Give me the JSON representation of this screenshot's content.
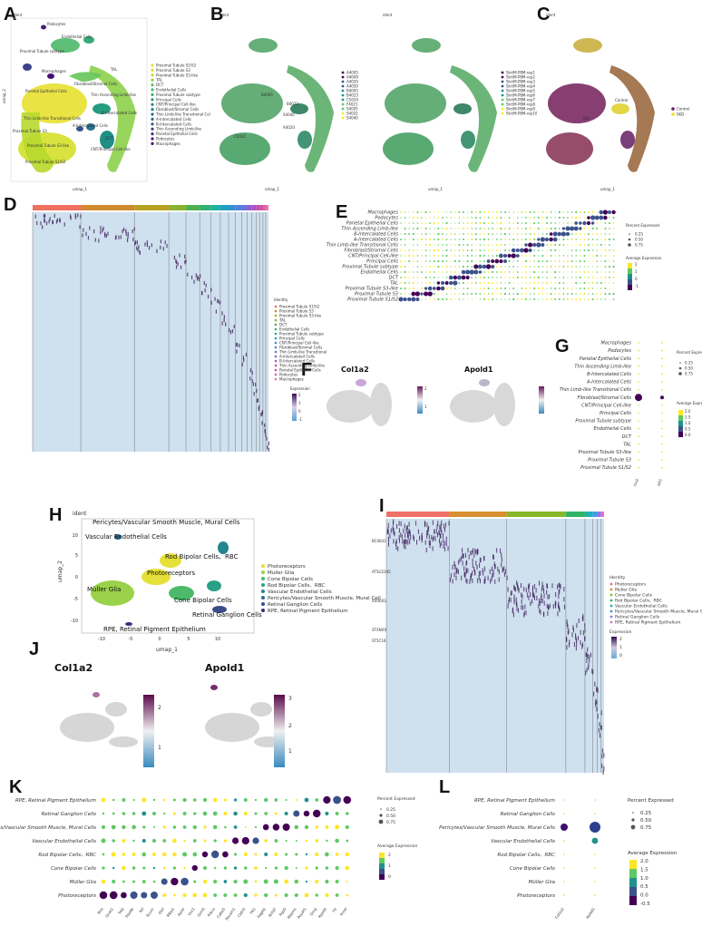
{
  "panels": {
    "a": "A",
    "b": "B",
    "c": "C",
    "d": "D",
    "e": "E",
    "f": "F",
    "g": "G",
    "h": "H",
    "i": "I",
    "j": "J",
    "k": "K",
    "l": "L"
  },
  "kidney": {
    "ident_label": "ident",
    "umap1": "umap_1",
    "umap2": "umap_2",
    "clusters": [
      {
        "name": "Proximal Tubule S1/S2",
        "color": "#e8e23a"
      },
      {
        "name": "Proximal Tubule S3",
        "color": "#d4e02a"
      },
      {
        "name": "Proximal Tubule S3-like",
        "color": "#b8d82e"
      },
      {
        "name": "TAL",
        "color": "#8cd04a"
      },
      {
        "name": "DCT",
        "color": "#66c55a"
      },
      {
        "name": "Endothelial Cells",
        "color": "#4cb86a"
      },
      {
        "name": "Proximal Tubule subtype",
        "color": "#36ab78"
      },
      {
        "name": "Principal Cells",
        "color": "#259d80"
      },
      {
        "name": "CNT/Principal Cell-like",
        "color": "#1f8e86"
      },
      {
        "name": "Fibroblast/Stromal Cells",
        "color": "#25808a"
      },
      {
        "name": "Thin Limb-like Transitional Cells",
        "color": "#2b718c"
      },
      {
        "name": "A-Intercalated Cells",
        "color": "#31628c"
      },
      {
        "name": "B-Intercalated Cells",
        "color": "#37538b"
      },
      {
        "name": "Thin Ascending Limb-like",
        "color": "#3d4388"
      },
      {
        "name": "Parietal Epithelial Cells",
        "color": "#433282"
      },
      {
        "name": "Podocytes",
        "color": "#46207a"
      },
      {
        "name": "Macrophages",
        "color": "#440d6e"
      }
    ],
    "umap_labels": [
      {
        "text": "Podocytes"
      },
      {
        "text": "Endothelial Cells"
      },
      {
        "text": "Proximal Tubule subtype"
      },
      {
        "text": "Macrophages"
      },
      {
        "text": "TAL"
      },
      {
        "text": "Fibroblast/Stromal Cells"
      },
      {
        "text": "Parietal Epithelial Cells"
      },
      {
        "text": "Thin Ascending Limb-like"
      },
      {
        "text": "B-Intercalated Cells"
      },
      {
        "text": "Thin Limb-like Transitional Cells"
      },
      {
        "text": "A-Intercalated Cells"
      },
      {
        "text": "Proximal Tubule S3"
      },
      {
        "text": "Proximal Tubule S3-like"
      },
      {
        "text": "DCT"
      },
      {
        "text": "CNT/Principal Cell-like"
      },
      {
        "text": "Proximal Tubule S1/S2"
      }
    ],
    "b_labels": [
      "B4005",
      "B4023",
      "C5024",
      "A4020",
      "S4040"
    ],
    "b_legend": [
      "A4005",
      "A4009",
      "A4020",
      "A4050",
      "B4005",
      "B4023",
      "C5024",
      "F4021",
      "S4005",
      "S4022",
      "S4040"
    ],
    "b_legend2": [
      "SkrtM-P8M-rep1",
      "SkrtM-P8M-rep2",
      "SkrtM-P8M-rep3",
      "SkrtM-P8M-rep4",
      "SkrtM-P8M-rep5",
      "SkrtM-P8M-rep6",
      "SkrtM-P8M-rep7",
      "SkrtM-P8M-rep8",
      "SkrtM-P8M-rep9",
      "SkrtM-P8M-rep10"
    ],
    "c_labels": [
      "SKD",
      "Control"
    ],
    "c_legend": [
      {
        "name": "Control",
        "color": "#6a1a6e"
      },
      {
        "name": "SKD",
        "color": "#f0e020"
      }
    ]
  },
  "heatmap_d": {
    "legend_title": "Identity",
    "legend": [
      "Proximal Tubule S1/S2",
      "Proximal Tubule S3",
      "Proximal Tubule S3-like",
      "TAL",
      "DCT",
      "Endothelial Cells",
      "Proximal Tubule subtype",
      "Principal Cells",
      "CNT/Principal Cell-like",
      "Fibroblast/Stromal Cells",
      "Thin Limb-like Transitional Cells",
      "A-Intercalated Cells",
      "B-Intercalated Cells",
      "Thin Ascending Limb-like",
      "Parietal Epithelial Cells",
      "Podocytes",
      "Macrophages"
    ],
    "expr_title": "Expression",
    "expr_ticks": [
      "2",
      "1",
      "0",
      "-1"
    ],
    "bar_colors": [
      "#f07060",
      "#d08a30",
      "#b9a020",
      "#8cb030",
      "#50b050",
      "#30b070",
      "#20b0a0",
      "#20a0c0",
      "#3090d0",
      "#5080e0",
      "#7070e0",
      "#9060d0",
      "#b050c0",
      "#c050b0",
      "#d050a0",
      "#e060a0",
      "#f070b0"
    ],
    "bar_widths": [
      70,
      78,
      50,
      25,
      20,
      16,
      14,
      12,
      10,
      9,
      8,
      7,
      6,
      5,
      5,
      4,
      4
    ]
  },
  "dot_e": {
    "rows": [
      "Macrophages",
      "Podocytes",
      "Parietal Epithelial Cells",
      "Thin Ascending Limb-like",
      "B-Intercalated Cells",
      "A-Intercalated Cells",
      "Thin Limb-like Transitional Cells",
      "Fibroblast/Stromal Cells",
      "CNT/Principal Cell-like",
      "Principal Cells",
      "Proximal Tubule subtype",
      "Endothelial Cells",
      "DCT",
      "TAL",
      "Proximal Tubule S3-like",
      "Proximal Tubule S3",
      "Proximal Tubule S1/S2"
    ],
    "pct_title": "Percent Expressed",
    "pct_ticks": [
      "0.25",
      "0.50",
      "0.75"
    ],
    "avg_title": "Average Expression",
    "avg_ticks": [
      "2",
      "1",
      "0",
      "-1"
    ]
  },
  "feature_f": {
    "genes": [
      "Col1a2",
      "Apold1"
    ],
    "ticks": [
      "2",
      "1"
    ]
  },
  "dot_g": {
    "rows": [
      "Macrophages",
      "Podocytes",
      "Parietal Epithelial Cells",
      "Thin Ascending Limb-like",
      "B-Intercalated Cells",
      "A-Intercalated Cells",
      "Thin Limb-like Transitional Cells",
      "Fibroblast/Stromal Cells",
      "CNT/Principal Cell-like",
      "Principal Cells",
      "Proximal Tubule subtype",
      "Endothelial Cells",
      "DCT",
      "TAL",
      "Proximal Tubule S3-like",
      "Proximal Tubule S3",
      "Proximal Tubule S1/S2"
    ],
    "cols": [
      "Col1a2",
      "Apold1"
    ],
    "pct_title": "Percent Expressed",
    "pct_ticks": [
      "0.25",
      "0.50",
      "0.75"
    ],
    "avg_title": "Average Expression",
    "avg_ticks": [
      "2.0",
      "1.5",
      "1.0",
      "0.5",
      "0.0"
    ]
  },
  "retina": {
    "ident_label": "ident",
    "umap1": "umap_1",
    "umap2": "umap_2",
    "x_ticks": [
      "-10",
      "-5",
      "0",
      "5",
      "10"
    ],
    "y_ticks": [
      "10",
      "5",
      "0",
      "-5",
      "-10"
    ],
    "clusters": [
      {
        "name": "Photoreceptors",
        "color": "#e6e03a"
      },
      {
        "name": "Muller Glia",
        "color": "#9ad24a"
      },
      {
        "name": "Cone Bipolar Cells",
        "color": "#4cba6a"
      },
      {
        "name": "Rod Bipolar Cells、RBC",
        "color": "#2aa084"
      },
      {
        "name": "Vascular Endothelial Cells",
        "color": "#23868c"
      },
      {
        "name": "Pericytes/Vascular Smooth Muscle, Mural Cells",
        "color": "#2f6a8e"
      },
      {
        "name": "Retinal Ganglion Cells",
        "color": "#3b4d8a"
      },
      {
        "name": "RPE, Retinal Pigment Epithelium",
        "color": "#46297c"
      }
    ],
    "umap_labels": [
      {
        "text": "Pericytes/Vascular Smooth Muscle, Mural Cells"
      },
      {
        "text": "Vascular Endothelial Cells"
      },
      {
        "text": "Rod Bipolar Cells、RBC"
      },
      {
        "text": "Photoreceptors"
      },
      {
        "text": "Müller Glia"
      },
      {
        "text": "Cone Bipolar Cells"
      },
      {
        "text": "Retinal Ganglion Cells"
      },
      {
        "text": "RPE, Retinal Pigment Epithelium"
      }
    ]
  },
  "heatmap_i": {
    "legend_title": "Identity",
    "legend": [
      "Photoreceptors",
      "Muller Glia",
      "Cone Bipolar Cells",
      "Rod Bipolar Cells、RBC",
      "Vascular Endothelial Cells",
      "Pericytes/Vascular Smooth Muscle, Mural Cells",
      "Retinal Ganglion Cells",
      "RPE, Retinal Pigment Epithelium"
    ],
    "expr_title": "Expression",
    "expr_ticks": [
      "2",
      "1",
      "0"
    ],
    "bar_colors": [
      "#f07068",
      "#d89030",
      "#88b828",
      "#30b468",
      "#20b0b8",
      "#3aa0e0",
      "#9a70e8",
      "#e070d0"
    ],
    "bar_widths": [
      66,
      60,
      62,
      20,
      8,
      5,
      4,
      3
    ],
    "row_labels": [
      "BC0041",
      "AT5G5345",
      "XX0003",
      "STXNXX",
      "ST5C16"
    ]
  },
  "feature_j": {
    "genes": [
      "Col1a2",
      "Apold1"
    ],
    "ticks_left": [
      "2",
      "1"
    ],
    "ticks_right": [
      "3",
      "2",
      "1"
    ]
  },
  "dot_k": {
    "rows": [
      "RPE, Retinal Pigment Epithelium",
      "Retinal Ganglion Cells",
      "Pericytes/Vascular Smooth Muscle, Mural Cells",
      "Vascular Endothelial Cells",
      "Rod Bipolar Cells、RBC",
      "Cone Bipolar Cells",
      "Müller Glia",
      "Photoreceptors"
    ],
    "pct_title": "Percent Expressed",
    "pct_ticks": [
      "0.25",
      "0.50",
      "0.75"
    ],
    "avg_title": "Average Expression",
    "avg_ticks": [
      "2",
      "1",
      "0"
    ],
    "genes": [
      "Rho",
      "Gnat1",
      "Sag",
      "Pde6b",
      "Nrl",
      "Rcvrn",
      "Glul",
      "Rlbp1",
      "Apoe",
      "Vsx2",
      "Grm6",
      "Prkca",
      "Cabp5",
      "Pecam1",
      "Cldn5",
      "Flt1",
      "Pdgfrb",
      "Acta2",
      "Rgs5",
      "Rbpms",
      "Pou4f1",
      "Sncg",
      "Rpe65",
      "Ttr",
      "Pmel"
    ]
  },
  "dot_l": {
    "rows": [
      "RPE, Retinal Pigment Epithelium",
      "Retinal Ganglion Cells",
      "Pericytes/Vascular Smooth Muscle, Mural Cells",
      "Vascular Endothelial Cells",
      "Rod Bipolar Cells、RBC",
      "Cone Bipolar Cells",
      "Müller Glia",
      "Photoreceptors"
    ],
    "cols": [
      "Col1a2",
      "Apold1"
    ],
    "pct_title": "Percent Expressed",
    "pct_ticks": [
      "0.25",
      "0.50",
      "0.75"
    ],
    "avg_title": "Average Expression",
    "avg_ticks": [
      "2.0",
      "1.5",
      "1.0",
      "0.5",
      "0.0",
      "-0.5"
    ]
  }
}
